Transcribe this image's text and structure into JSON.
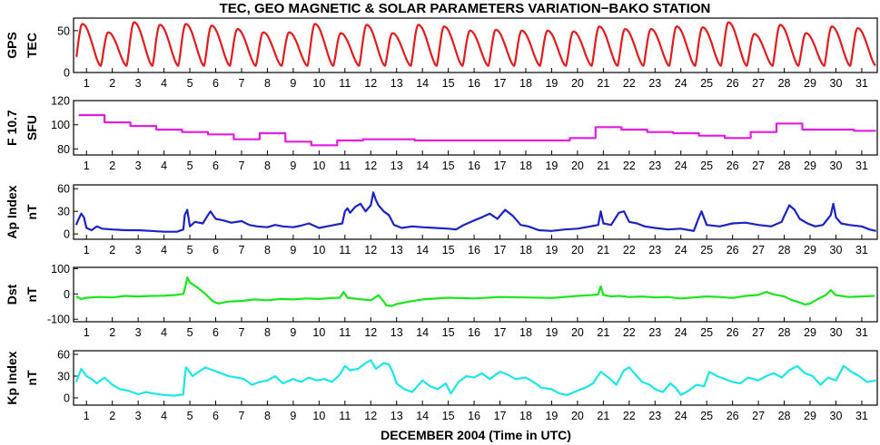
{
  "chart_data": {
    "type": "line",
    "title": "TEC, GEO MAGNETIC & SOLAR PARAMETERS VARIATION−BAKO STATION",
    "xlabel": "DECEMBER 2004 (Time in UTC)",
    "xlim": [
      0.5,
      31.6
    ],
    "x_ticks": [
      "1",
      "2",
      "3",
      "4",
      "5",
      "6",
      "7",
      "8",
      "9",
      "10",
      "11",
      "12",
      "13",
      "14",
      "15",
      "16",
      "17",
      "18",
      "19",
      "20",
      "21",
      "22",
      "23",
      "24",
      "25",
      "26",
      "27",
      "28",
      "29",
      "30",
      "31"
    ],
    "panels": [
      {
        "key": "tec",
        "ylabel": [
          "GPS",
          "TEC"
        ],
        "color": "#e41a1c",
        "ylim": [
          0,
          65
        ],
        "yticks": [
          0,
          50
        ],
        "daily_peaks": [
          58,
          48,
          60,
          57,
          58,
          56,
          52,
          48,
          48,
          58,
          47,
          57,
          47,
          57,
          55,
          50,
          51,
          50,
          50,
          49,
          55,
          52,
          52,
          55,
          54,
          60,
          46,
          57,
          47,
          55,
          53
        ],
        "daily_min": 8,
        "peak_hour_utc": 7
      },
      {
        "key": "f107",
        "ylabel": [
          "F 10.7",
          "SFU"
        ],
        "color": "#e11be1",
        "ylim": [
          75,
          120
        ],
        "yticks": [
          80,
          100,
          120
        ],
        "daily_values": [
          108,
          102,
          99,
          96,
          94,
          92,
          88,
          93,
          86,
          83,
          87,
          88,
          88,
          87,
          87,
          87,
          87,
          87,
          87,
          89,
          98,
          96,
          94,
          93,
          91,
          89,
          94,
          101,
          96,
          96,
          95
        ]
      },
      {
        "key": "ap",
        "ylabel": [
          "Ap Index",
          "nT"
        ],
        "color": "#1a22c8",
        "ylim": [
          -7,
          65
        ],
        "yticks": [
          0,
          30,
          60
        ],
        "x": [
          0.6,
          0.7,
          0.8,
          0.9,
          1.0,
          1.2,
          1.4,
          1.6,
          2.0,
          2.5,
          3.0,
          3.5,
          4.0,
          4.5,
          4.75,
          4.8,
          4.9,
          5.0,
          5.2,
          5.5,
          5.7,
          5.8,
          6.0,
          6.3,
          6.6,
          7.0,
          7.3,
          7.6,
          8.0,
          8.3,
          8.6,
          9.0,
          9.3,
          9.6,
          10.0,
          10.3,
          10.6,
          10.9,
          11.0,
          11.1,
          11.2,
          11.4,
          11.6,
          11.8,
          12.0,
          12.1,
          12.2,
          12.3,
          12.5,
          12.7,
          12.9,
          13.2,
          13.6,
          14.0,
          14.5,
          15.0,
          15.3,
          15.6,
          16.0,
          16.3,
          16.6,
          16.9,
          17.2,
          17.5,
          17.8,
          18.1,
          18.5,
          19.0,
          19.5,
          20.0,
          20.5,
          20.8,
          20.9,
          21.0,
          21.3,
          21.6,
          21.8,
          22.0,
          22.3,
          22.6,
          23.0,
          23.5,
          24.0,
          24.5,
          24.7,
          24.8,
          25.0,
          25.5,
          26.0,
          26.5,
          27.0,
          27.5,
          27.9,
          28.0,
          28.2,
          28.4,
          28.6,
          28.9,
          29.2,
          29.5,
          29.8,
          29.9,
          30.0,
          30.2,
          30.5,
          31.0,
          31.3,
          31.55
        ],
        "y": [
          12,
          20,
          27,
          22,
          8,
          5,
          10,
          7,
          6,
          5,
          5,
          4,
          3,
          3,
          6,
          25,
          32,
          10,
          16,
          14,
          25,
          30,
          20,
          18,
          15,
          17,
          12,
          10,
          9,
          12,
          10,
          9,
          11,
          14,
          8,
          10,
          12,
          14,
          30,
          34,
          28,
          36,
          40,
          30,
          38,
          55,
          45,
          38,
          30,
          25,
          12,
          8,
          10,
          9,
          8,
          7,
          6,
          12,
          18,
          22,
          27,
          20,
          32,
          24,
          12,
          10,
          5,
          4,
          6,
          7,
          10,
          12,
          30,
          14,
          12,
          28,
          30,
          16,
          14,
          10,
          8,
          6,
          7,
          4,
          22,
          30,
          12,
          10,
          14,
          15,
          12,
          10,
          16,
          24,
          38,
          32,
          20,
          14,
          10,
          12,
          25,
          40,
          22,
          14,
          12,
          10,
          6,
          4
        ],
        "baseline": 3
      },
      {
        "key": "dst",
        "ylabel": [
          "Dst",
          "nT"
        ],
        "color": "#1ae61a",
        "ylim": [
          -110,
          105
        ],
        "yticks": [
          -100,
          0,
          100
        ],
        "x": [
          0.6,
          0.8,
          1.0,
          1.5,
          2.0,
          2.5,
          3.0,
          3.5,
          4.0,
          4.5,
          4.75,
          4.82,
          4.9,
          5.0,
          5.3,
          5.6,
          5.9,
          6.1,
          6.5,
          7.0,
          7.5,
          8.0,
          8.5,
          9.0,
          9.5,
          10.0,
          10.5,
          10.8,
          10.95,
          11.1,
          11.5,
          12.0,
          12.3,
          12.5,
          12.6,
          12.8,
          13.0,
          13.5,
          14.0,
          15.0,
          16.0,
          17.0,
          18.0,
          19.0,
          20.0,
          20.5,
          20.8,
          20.9,
          21.0,
          21.3,
          21.6,
          22.0,
          22.5,
          23.0,
          23.5,
          24.0,
          24.5,
          25.0,
          25.5,
          26.0,
          26.5,
          27.0,
          27.3,
          27.6,
          28.0,
          28.3,
          28.5,
          28.8,
          29.0,
          29.3,
          29.6,
          29.8,
          30.0,
          30.5,
          31.0,
          31.5
        ],
        "y": [
          -10,
          -20,
          -15,
          -12,
          -14,
          -8,
          -10,
          -8,
          -7,
          -4,
          0,
          25,
          65,
          45,
          25,
          0,
          -30,
          -38,
          -30,
          -28,
          -22,
          -25,
          -20,
          -22,
          -18,
          -20,
          -16,
          -15,
          8,
          -15,
          -20,
          -25,
          -5,
          -30,
          -45,
          -48,
          -40,
          -30,
          -22,
          -15,
          -18,
          -12,
          -14,
          -16,
          -8,
          -5,
          -2,
          30,
          -4,
          -10,
          -8,
          -12,
          -10,
          -14,
          -12,
          -18,
          -14,
          -10,
          -12,
          -16,
          -8,
          -4,
          8,
          -2,
          -10,
          -25,
          -30,
          -42,
          -38,
          -20,
          -5,
          15,
          -5,
          -12,
          -10,
          -8
        ]
      },
      {
        "key": "kp",
        "ylabel": [
          "Kp Index",
          "nT"
        ],
        "color": "#1be6e6",
        "ylim": [
          -10,
          65
        ],
        "yticks": [
          0,
          30,
          60
        ],
        "x": [
          0.6,
          0.8,
          1.0,
          1.2,
          1.4,
          1.7,
          2.0,
          2.3,
          2.6,
          3.0,
          3.3,
          3.6,
          4.0,
          4.4,
          4.75,
          4.8,
          4.85,
          4.95,
          5.1,
          5.3,
          5.6,
          5.9,
          6.2,
          6.5,
          6.8,
          7.1,
          7.4,
          7.7,
          8.0,
          8.3,
          8.6,
          9.0,
          9.3,
          9.6,
          9.9,
          10.2,
          10.5,
          10.8,
          11.0,
          11.2,
          11.5,
          11.8,
          12.0,
          12.2,
          12.5,
          12.7,
          12.85,
          13.0,
          13.3,
          13.6,
          14.0,
          14.3,
          14.6,
          14.9,
          15.1,
          15.4,
          15.7,
          16.0,
          16.3,
          16.6,
          17.0,
          17.3,
          17.6,
          18.0,
          18.3,
          18.6,
          19.0,
          19.3,
          19.6,
          20.0,
          20.3,
          20.6,
          20.9,
          21.2,
          21.5,
          21.8,
          22.0,
          22.2,
          22.5,
          22.8,
          23.0,
          23.3,
          23.6,
          23.8,
          24.0,
          24.3,
          24.6,
          24.9,
          25.1,
          25.4,
          25.7,
          26.0,
          26.3,
          26.6,
          27.0,
          27.3,
          27.6,
          27.9,
          28.2,
          28.5,
          28.8,
          29.1,
          29.4,
          29.7,
          30.0,
          30.3,
          30.6,
          30.9,
          31.2,
          31.55
        ],
        "y": [
          22,
          40,
          30,
          26,
          20,
          28,
          18,
          12,
          10,
          5,
          8,
          6,
          4,
          3,
          5,
          28,
          42,
          38,
          30,
          35,
          42,
          38,
          34,
          30,
          28,
          26,
          18,
          22,
          24,
          30,
          20,
          26,
          22,
          28,
          24,
          26,
          22,
          32,
          44,
          38,
          40,
          48,
          52,
          40,
          48,
          46,
          36,
          20,
          12,
          8,
          24,
          16,
          12,
          20,
          6,
          22,
          30,
          28,
          34,
          26,
          36,
          32,
          26,
          28,
          22,
          14,
          12,
          6,
          4,
          10,
          14,
          20,
          36,
          28,
          18,
          38,
          42,
          34,
          22,
          18,
          12,
          8,
          20,
          14,
          4,
          10,
          18,
          16,
          36,
          30,
          26,
          22,
          20,
          28,
          24,
          30,
          34,
          28,
          38,
          44,
          34,
          30,
          18,
          28,
          24,
          44,
          36,
          30,
          22,
          24
        ]
      }
    ]
  }
}
